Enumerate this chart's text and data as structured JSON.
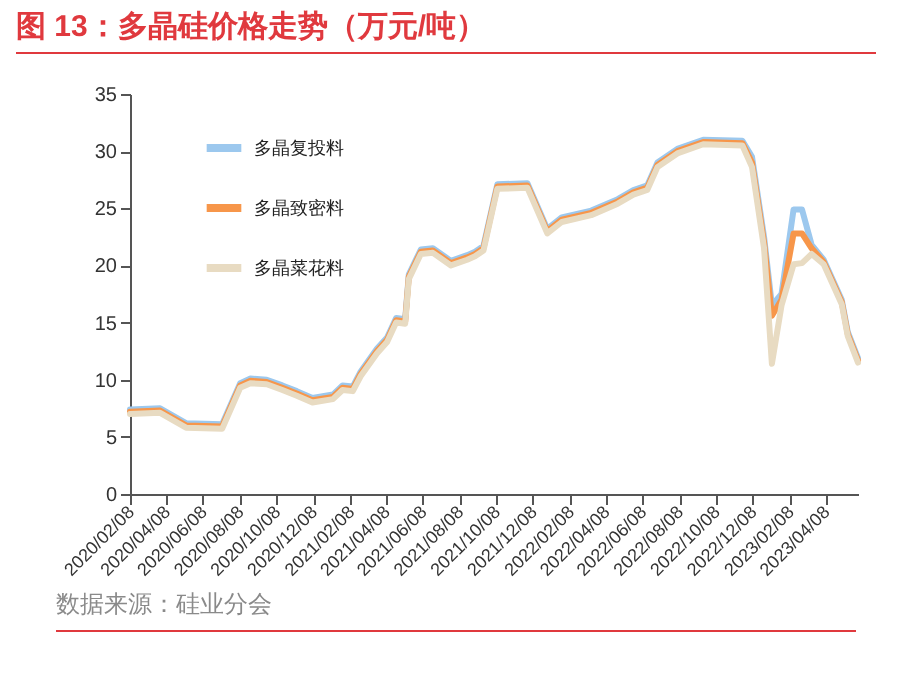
{
  "chart_data": {
    "type": "line",
    "title": "图 13：多晶硅价格走势（万元/吨）",
    "annotations": [
      "数据来源：硅业分会"
    ],
    "x": [
      "2020-02-08",
      "2020-03-29",
      "2020-05-11",
      "2020-07-10",
      "2020-08-09",
      "2020-08-26",
      "2020-09-22",
      "2020-10-18",
      "2020-11-11",
      "2020-12-07",
      "2021-01-10",
      "2021-01-26",
      "2021-02-12",
      "2021-02-25",
      "2021-03-24",
      "2021-04-10",
      "2021-04-25",
      "2021-05-10",
      "2021-05-16",
      "2021-06-05",
      "2021-06-25",
      "2021-07-25",
      "2021-08-21",
      "2021-09-03",
      "2021-09-17",
      "2021-10-10",
      "2021-11-29",
      "2022-01-01",
      "2022-01-25",
      "2022-03-15",
      "2022-04-28",
      "2022-05-24",
      "2022-06-16",
      "2022-07-03",
      "2022-08-05",
      "2022-09-17",
      "2022-11-21",
      "2022-12-07",
      "2022-12-27",
      "2023-01-09",
      "2023-01-25",
      "2023-02-14",
      "2023-02-28",
      "2023-03-16",
      "2023-04-05",
      "2023-05-05",
      "2023-05-15",
      "2023-06-01"
    ],
    "series": [
      {
        "name": "多晶复投料",
        "color": "#9cc8ee",
        "values": [
          7.4,
          7.5,
          6.2,
          6.1,
          9.7,
          10.1,
          10.0,
          9.5,
          9.0,
          8.4,
          8.7,
          9.5,
          9.4,
          10.7,
          12.7,
          13.7,
          15.4,
          15.3,
          19.2,
          21.4,
          21.5,
          20.4,
          20.9,
          21.2,
          21.7,
          27.1,
          27.2,
          23.2,
          24.2,
          24.8,
          25.8,
          26.6,
          27.0,
          29.0,
          30.2,
          31.0,
          30.9,
          29.5,
          22.5,
          16.5,
          17.5,
          24.9,
          24.9,
          21.8,
          20.5,
          17.0,
          14.2,
          11.9
        ]
      },
      {
        "name": "多晶致密料",
        "color": "#f7964a",
        "values": [
          7.2,
          7.3,
          6.0,
          5.9,
          9.5,
          9.9,
          9.8,
          9.3,
          8.8,
          8.2,
          8.5,
          9.3,
          9.2,
          10.5,
          12.5,
          13.5,
          15.2,
          15.1,
          19,
          21.2,
          21.3,
          20.2,
          20.7,
          21,
          21.5,
          26.9,
          27.0,
          23.0,
          24.0,
          24.6,
          25.6,
          26.4,
          26.8,
          28.8,
          30.0,
          30.8,
          30.7,
          29.0,
          22.0,
          15.6,
          17.0,
          22.8,
          22.8,
          21.5,
          20.3,
          16.8,
          14.0,
          11.7
        ]
      },
      {
        "name": "多晶菜花料",
        "color": "#e8dbc2",
        "values": [
          7.0,
          7.1,
          5.8,
          5.7,
          9.3,
          9.7,
          9.6,
          9.1,
          8.6,
          8.0,
          8.3,
          9.1,
          9.0,
          10.3,
          12.3,
          13.3,
          15.0,
          14.9,
          18.8,
          21.0,
          21.1,
          20.0,
          20.5,
          20.8,
          21.3,
          26.7,
          26.8,
          22.8,
          23.8,
          24.4,
          25.4,
          26.2,
          26.6,
          28.6,
          29.8,
          30.6,
          30.5,
          28.6,
          21.5,
          11.4,
          16.5,
          20.1,
          20.2,
          21.0,
          20.1,
          16.6,
          13.8,
          11.5
        ]
      }
    ],
    "xlim": [
      "2020-02-08",
      "2023-06-01"
    ],
    "xticks": [
      {
        "value": "2020-02-08",
        "label": "2020/02/08"
      },
      {
        "value": "2020-04-08",
        "label": "2020/04/08"
      },
      {
        "value": "2020-06-08",
        "label": "2020/06/08"
      },
      {
        "value": "2020-08-08",
        "label": "2020/08/08"
      },
      {
        "value": "2020-10-08",
        "label": "2020/10/08"
      },
      {
        "value": "2020-12-08",
        "label": "2020/12/08"
      },
      {
        "value": "2021-02-08",
        "label": "2021/02/08"
      },
      {
        "value": "2021-04-08",
        "label": "2021/04/08"
      },
      {
        "value": "2021-06-08",
        "label": "2021/06/08"
      },
      {
        "value": "2021-08-08",
        "label": "2021/08/08"
      },
      {
        "value": "2021-10-08",
        "label": "2021/10/08"
      },
      {
        "value": "2021-12-08",
        "label": "2021/12/08"
      },
      {
        "value": "2022-02-08",
        "label": "2022/02/08"
      },
      {
        "value": "2022-04-08",
        "label": "2022/04/08"
      },
      {
        "value": "2022-06-08",
        "label": "2022/06/08"
      },
      {
        "value": "2022-08-08",
        "label": "2022/08/08"
      },
      {
        "value": "2022-10-08",
        "label": "2022/10/08"
      },
      {
        "value": "2022-12-08",
        "label": "2022/12/08"
      },
      {
        "value": "2023-02-08",
        "label": "2023/02/08"
      },
      {
        "value": "2023-04-08",
        "label": "2023/04/08"
      }
    ],
    "ylim": [
      0,
      35
    ],
    "yticks": [
      0,
      5,
      10,
      15,
      20,
      25,
      30,
      35
    ],
    "grid": false,
    "legend": "top left",
    "marker": "none",
    "line_style": "solid"
  }
}
